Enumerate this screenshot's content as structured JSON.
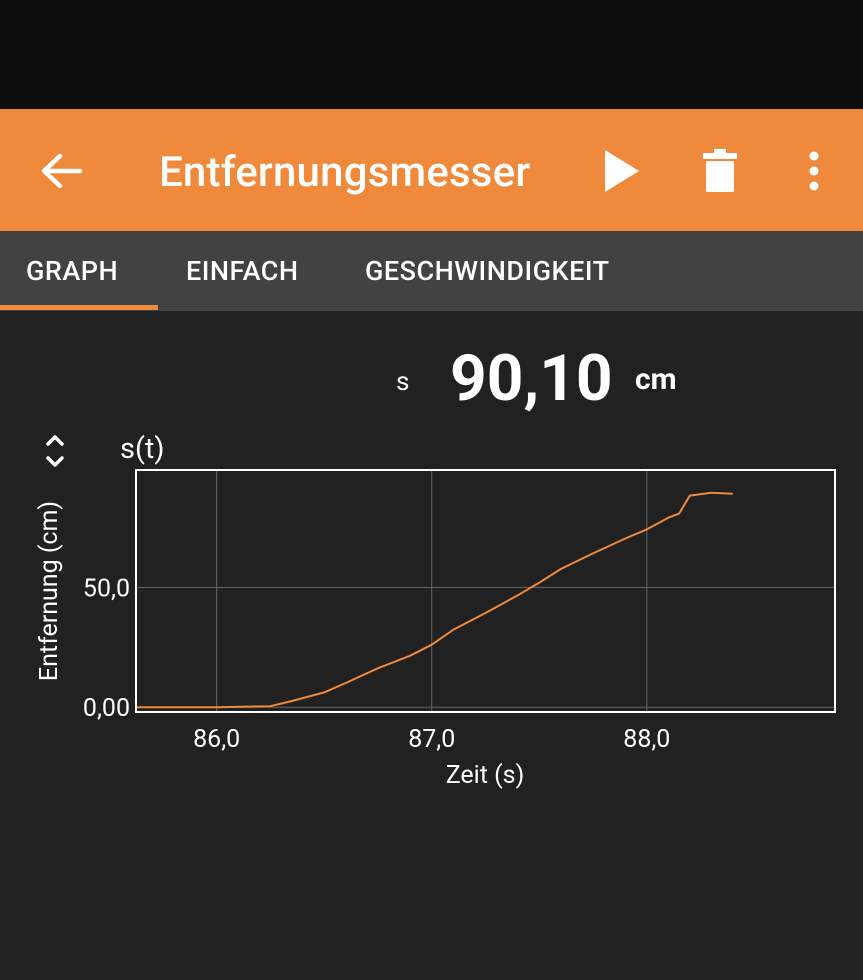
{
  "app_bar": {
    "title": "Entfernungsmesser",
    "icons": [
      "arrow-back-icon",
      "play-icon",
      "trash-icon",
      "more-vert-icon"
    ]
  },
  "tabs": [
    "GRAPH",
    "EINFACH",
    "GESCHWINDIGKEIT"
  ],
  "active_tab": "GRAPH",
  "value": {
    "symbol": "s",
    "number": "90,10",
    "unit": "cm"
  },
  "colors": {
    "accent": "#ef8a3c",
    "background": "#212121",
    "tabbar": "#424242"
  },
  "chart_data": {
    "type": "line",
    "title": "s(t)",
    "xlabel": "Zeit (s)",
    "ylabel": "Entfernung (cm)",
    "xlim": [
      85.625,
      88.875
    ],
    "ylim": [
      -2,
      99
    ],
    "xticks": [
      "86,0",
      "87,0",
      "88,0"
    ],
    "yticks": [
      "0,00",
      "50,0"
    ],
    "grid": true,
    "series": [
      {
        "x": [
          85.625,
          86.0,
          86.25,
          86.35,
          86.5,
          86.6,
          86.75,
          86.9,
          87.0,
          87.1,
          87.25,
          87.4,
          87.5,
          87.6,
          87.75,
          87.9,
          88.0,
          88.1,
          88.15,
          88.2,
          88.3,
          88.4
        ],
        "y": [
          0,
          0,
          0.4,
          2.6,
          6.2,
          10.1,
          16.3,
          21.5,
          26.1,
          32.3,
          39.3,
          46.7,
          52.0,
          57.7,
          64.2,
          70.4,
          74.2,
          79.1,
          80.8,
          88.3,
          89.5,
          89.1
        ]
      }
    ]
  }
}
